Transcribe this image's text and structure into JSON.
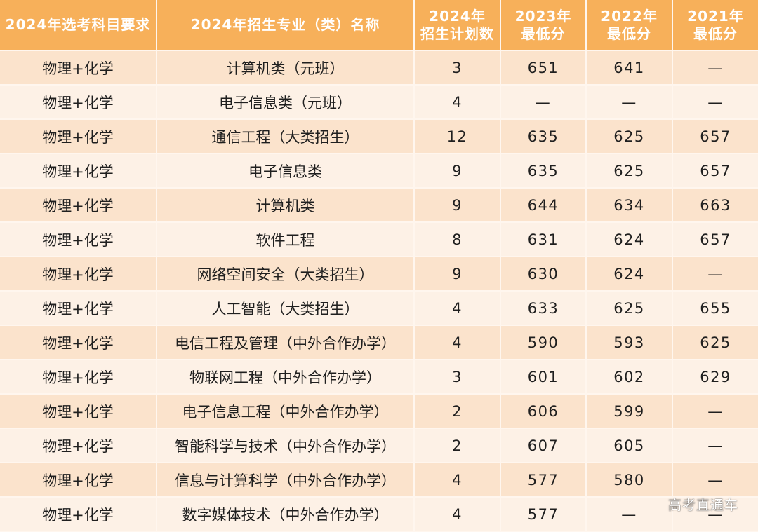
{
  "table": {
    "headers": [
      {
        "lines": [
          "2024年选考科目要求"
        ]
      },
      {
        "lines": [
          "2024年招生专业（类）名称"
        ]
      },
      {
        "lines": [
          "2024年",
          "招生计划数"
        ]
      },
      {
        "lines": [
          "2023年",
          "最低分"
        ]
      },
      {
        "lines": [
          "2022年",
          "最低分"
        ]
      },
      {
        "lines": [
          "2021年",
          "最低分"
        ]
      }
    ],
    "rows": [
      [
        "物理+化学",
        "计算机类（元班）",
        "3",
        "651",
        "641",
        "—"
      ],
      [
        "物理+化学",
        "电子信息类（元班）",
        "4",
        "—",
        "—",
        "—"
      ],
      [
        "物理+化学",
        "通信工程（大类招生）",
        "12",
        "635",
        "625",
        "657"
      ],
      [
        "物理+化学",
        "电子信息类",
        "9",
        "635",
        "625",
        "657"
      ],
      [
        "物理+化学",
        "计算机类",
        "9",
        "644",
        "634",
        "663"
      ],
      [
        "物理+化学",
        "软件工程",
        "8",
        "631",
        "624",
        "657"
      ],
      [
        "物理+化学",
        "网络空间安全（大类招生）",
        "9",
        "630",
        "624",
        "—"
      ],
      [
        "物理+化学",
        "人工智能（大类招生）",
        "4",
        "633",
        "625",
        "655"
      ],
      [
        "物理+化学",
        "电信工程及管理（中外合作办学）",
        "4",
        "590",
        "593",
        "625"
      ],
      [
        "物理+化学",
        "物联网工程（中外合作办学）",
        "3",
        "601",
        "602",
        "629"
      ],
      [
        "物理+化学",
        "电子信息工程（中外合作办学）",
        "2",
        "606",
        "599",
        "—"
      ],
      [
        "物理+化学",
        "智能科学与技术（中外合作办学）",
        "2",
        "607",
        "605",
        "—"
      ],
      [
        "物理+化学",
        "信息与计算科学（中外合作办学）",
        "4",
        "577",
        "580",
        "—"
      ],
      [
        "物理+化学",
        "数字媒体技术（中外合作办学）",
        "4",
        "577",
        "—",
        "—"
      ]
    ]
  },
  "watermark": "高考直通车",
  "colors": {
    "header_bg": "#f7b05a",
    "header_text": "#ffffff",
    "row_odd_bg": "#fbe3cc",
    "row_even_bg": "#fdf1e6",
    "cell_text": "#1f1f1f"
  }
}
